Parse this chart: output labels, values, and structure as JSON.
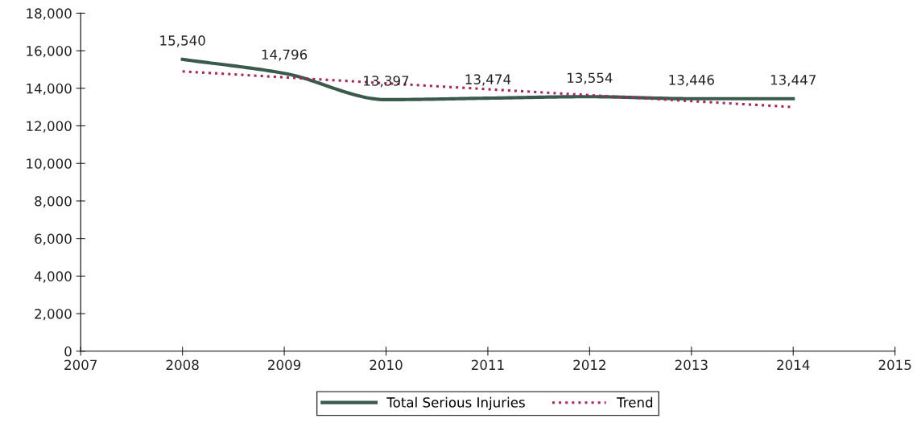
{
  "chart_data": {
    "type": "line",
    "x": [
      2008,
      2009,
      2010,
      2011,
      2012,
      2013,
      2014
    ],
    "series": [
      {
        "name": "Total Serious Injuries",
        "color": "#3a5a4e",
        "values": [
          15540,
          14796,
          13397,
          13474,
          13554,
          13446,
          13447
        ],
        "value_labels": [
          "15,540",
          "14,796",
          "13,397",
          "13,474",
          "13,554",
          "13,446",
          "13,447"
        ],
        "line_style": "solid"
      },
      {
        "name": "Trend",
        "color": "#a3285c",
        "x": [
          2008,
          2014
        ],
        "values": [
          14900,
          13000
        ],
        "line_style": "dotted"
      }
    ],
    "xlim": [
      2007,
      2015
    ],
    "xticks": [
      2007,
      2008,
      2009,
      2010,
      2011,
      2012,
      2013,
      2014,
      2015
    ],
    "ylim": [
      0,
      18000
    ],
    "yticks": [
      {
        "value": 0,
        "label": "0"
      },
      {
        "value": 2000,
        "label": "2,000"
      },
      {
        "value": 4000,
        "label": "4,000"
      },
      {
        "value": 6000,
        "label": "6,000"
      },
      {
        "value": 8000,
        "label": "8,000"
      },
      {
        "value": 10000,
        "label": "10,000"
      },
      {
        "value": 12000,
        "label": "12,000"
      },
      {
        "value": 14000,
        "label": "14,000"
      },
      {
        "value": 16000,
        "label": "16,000"
      },
      {
        "value": 18000,
        "label": "18,000"
      }
    ],
    "grid": false,
    "legend": "bottom",
    "marker": "none"
  }
}
